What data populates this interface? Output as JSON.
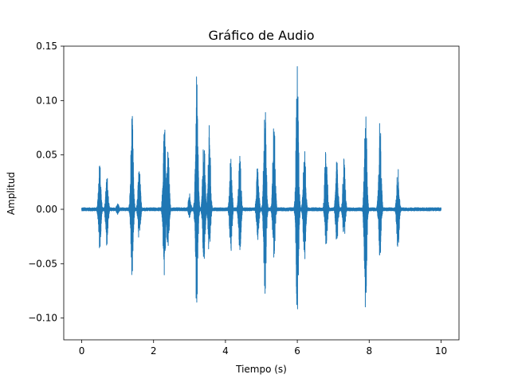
{
  "chart_data": {
    "type": "line",
    "title": "Gráfico de Audio",
    "xlabel": "Tiempo (s)",
    "ylabel": "Amplitud",
    "xlim": [
      -0.5,
      10.5
    ],
    "ylim": [
      -0.12,
      0.15
    ],
    "xticks": [
      0,
      2,
      4,
      6,
      8,
      10
    ],
    "xtick_labels": [
      "0",
      "2",
      "4",
      "6",
      "8",
      "10"
    ],
    "yticks": [
      -0.1,
      -0.05,
      0.0,
      0.05,
      0.1,
      0.15
    ],
    "ytick_labels": [
      "−0.10",
      "−0.05",
      "0.00",
      "0.05",
      "0.10",
      "0.15"
    ],
    "grid": false,
    "color": "#1f77b4",
    "series": [
      {
        "envelope": [
          {
            "t": 0.5,
            "max": 0.043,
            "min": -0.038
          },
          {
            "t": 0.7,
            "max": 0.032,
            "min": -0.034
          },
          {
            "t": 1.0,
            "max": 0.006,
            "min": -0.005
          },
          {
            "t": 1.4,
            "max": 0.09,
            "min": -0.062
          },
          {
            "t": 1.6,
            "max": 0.04,
            "min": -0.03
          },
          {
            "t": 2.3,
            "max": 0.091,
            "min": -0.064
          },
          {
            "t": 2.4,
            "max": 0.06,
            "min": -0.04
          },
          {
            "t": 3.0,
            "max": 0.015,
            "min": -0.008
          },
          {
            "t": 3.2,
            "max": 0.124,
            "min": -0.096
          },
          {
            "t": 3.4,
            "max": 0.068,
            "min": -0.055
          },
          {
            "t": 3.55,
            "max": 0.078,
            "min": -0.046
          },
          {
            "t": 4.15,
            "max": 0.05,
            "min": -0.04
          },
          {
            "t": 4.4,
            "max": 0.052,
            "min": -0.043
          },
          {
            "t": 4.9,
            "max": 0.045,
            "min": -0.028
          },
          {
            "t": 5.1,
            "max": 0.108,
            "min": -0.08
          },
          {
            "t": 5.35,
            "max": 0.085,
            "min": -0.05
          },
          {
            "t": 6.0,
            "max": 0.138,
            "min": -0.107
          },
          {
            "t": 6.2,
            "max": 0.06,
            "min": -0.05
          },
          {
            "t": 6.8,
            "max": 0.07,
            "min": -0.04
          },
          {
            "t": 7.1,
            "max": 0.046,
            "min": -0.032
          },
          {
            "t": 7.3,
            "max": 0.05,
            "min": -0.028
          },
          {
            "t": 7.9,
            "max": 0.1,
            "min": -0.097
          },
          {
            "t": 8.3,
            "max": 0.09,
            "min": -0.045
          },
          {
            "t": 8.8,
            "max": 0.04,
            "min": -0.04
          }
        ]
      }
    ]
  }
}
